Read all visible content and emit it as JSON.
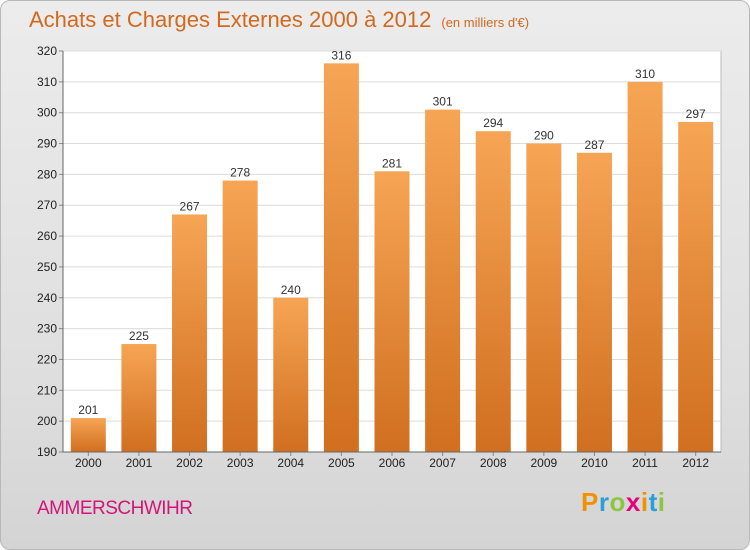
{
  "title": "Achats et Charges Externes 2000 à 2012",
  "unit_note": "(en milliers d'€)",
  "commune": "AMMERSCHWIHR",
  "logo": {
    "letters": [
      "P",
      "r",
      "o",
      "x",
      "i",
      "t",
      "i"
    ],
    "colors": [
      "#f29100",
      "#2aa0d8",
      "#8cc63f",
      "#e5007d",
      "#f29100",
      "#2aa0d8",
      "#8cc63f"
    ]
  },
  "colors": {
    "bar_top": "#f6a555",
    "bar_bottom": "#d06f1f",
    "title": "#d2691e",
    "commune": "#d4147a"
  },
  "chart_data": {
    "type": "bar",
    "title": "Achats et Charges Externes 2000 à 2012",
    "subtitle": "(en milliers d'€)",
    "categories": [
      "2000",
      "2001",
      "2002",
      "2003",
      "2004",
      "2005",
      "2006",
      "2007",
      "2008",
      "2009",
      "2010",
      "2011",
      "2012"
    ],
    "values": [
      201,
      225,
      267,
      278,
      240,
      316,
      281,
      301,
      294,
      290,
      287,
      310,
      297
    ],
    "ylim": [
      190,
      320
    ],
    "yticks": [
      190,
      200,
      210,
      220,
      230,
      240,
      250,
      260,
      270,
      280,
      290,
      300,
      310,
      320
    ],
    "xlabel": "",
    "ylabel": "",
    "grid": true,
    "data_labels": true
  }
}
